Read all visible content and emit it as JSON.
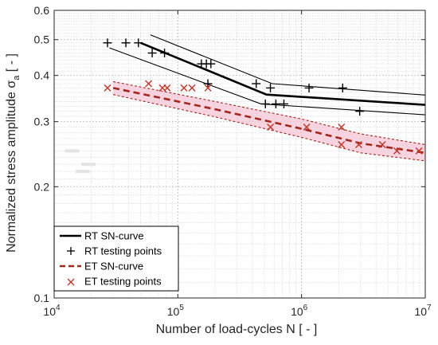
{
  "chart_data": {
    "type": "line",
    "xscale": "log",
    "yscale": "log",
    "xlim": [
      10000,
      10000000
    ],
    "ylim": [
      0.1,
      0.6
    ],
    "xlabel": "Number of load-cycles N [ - ]",
    "ylabel_main": "Normalized stress amplitude σ",
    "ylabel_sub": "a",
    "ylabel_tail": " [ - ]",
    "grid": true,
    "legend_position": "bottom-left",
    "x_ticks": [
      {
        "value": 10000,
        "base": "10",
        "exp": "4"
      },
      {
        "value": 100000,
        "base": "10",
        "exp": "5"
      },
      {
        "value": 1000000,
        "base": "10",
        "exp": "6"
      },
      {
        "value": 10000000,
        "base": "10",
        "exp": "7"
      }
    ],
    "y_ticks": [
      {
        "value": 0.1,
        "label": "0.1"
      },
      {
        "value": 0.2,
        "label": "0.2"
      },
      {
        "value": 0.3,
        "label": "0.3"
      },
      {
        "value": 0.4,
        "label": "0.4"
      },
      {
        "value": 0.5,
        "label": "0.5"
      },
      {
        "value": 0.6,
        "label": "0.6"
      }
    ],
    "series": [
      {
        "name": "RT SN-curve",
        "style": "solid-thick",
        "color": "#000000",
        "points": [
          [
            50000,
            0.49
          ],
          [
            520000,
            0.355
          ],
          [
            10000000,
            0.333
          ]
        ]
      },
      {
        "style": "solid-thin-band",
        "color": "#000000",
        "points": [
          [
            60000,
            0.515
          ],
          [
            580000,
            0.38
          ],
          [
            10000000,
            0.354
          ]
        ]
      },
      {
        "style": "solid-thin-band",
        "color": "#000000",
        "points": [
          [
            28000,
            0.475
          ],
          [
            470000,
            0.335
          ],
          [
            10000000,
            0.313
          ]
        ]
      },
      {
        "name": "RT testing points",
        "style": "plus",
        "color": "#000000",
        "points": [
          [
            27000,
            0.49
          ],
          [
            38000,
            0.49
          ],
          [
            48000,
            0.49
          ],
          [
            62000,
            0.46
          ],
          [
            78000,
            0.46
          ],
          [
            155000,
            0.43
          ],
          [
            170000,
            0.43
          ],
          [
            185000,
            0.43
          ],
          [
            175000,
            0.38
          ],
          [
            430000,
            0.38
          ],
          [
            560000,
            0.37
          ],
          [
            1150000,
            0.37
          ],
          [
            2150000,
            0.37
          ],
          [
            510000,
            0.335
          ],
          [
            620000,
            0.335
          ],
          [
            720000,
            0.335
          ],
          [
            2950000,
            0.32
          ]
        ]
      },
      {
        "name": "ET SN-curve",
        "style": "dashed-thick",
        "color": "#a0281e",
        "points": [
          [
            30000,
            0.37
          ],
          [
            200000,
            0.324
          ],
          [
            1000000,
            0.287
          ],
          [
            3000000,
            0.262
          ],
          [
            10000000,
            0.247
          ]
        ]
      },
      {
        "style": "dashed-thin-band",
        "color": "#a0281e",
        "points": [
          [
            30000,
            0.385
          ],
          [
            200000,
            0.34
          ],
          [
            1000000,
            0.305
          ],
          [
            3000000,
            0.278
          ],
          [
            10000000,
            0.26
          ]
        ]
      },
      {
        "style": "dashed-thin-band",
        "color": "#a0281e",
        "points": [
          [
            30000,
            0.355
          ],
          [
            200000,
            0.309
          ],
          [
            1000000,
            0.272
          ],
          [
            3000000,
            0.247
          ],
          [
            10000000,
            0.235
          ]
        ]
      },
      {
        "name": "ET testing points",
        "style": "cross",
        "color": "#c0392b",
        "points": [
          [
            27000,
            0.37
          ],
          [
            58000,
            0.38
          ],
          [
            75000,
            0.37
          ],
          [
            82000,
            0.37
          ],
          [
            112000,
            0.37
          ],
          [
            130000,
            0.37
          ],
          [
            175000,
            0.37
          ],
          [
            560000,
            0.29
          ],
          [
            1100000,
            0.29
          ],
          [
            2100000,
            0.29
          ],
          [
            2100000,
            0.26
          ],
          [
            2900000,
            0.26
          ],
          [
            4500000,
            0.26
          ],
          [
            5900000,
            0.25
          ],
          [
            8900000,
            0.25
          ]
        ]
      }
    ],
    "band_fill": {
      "color": "#f5c6d6",
      "upper": [
        [
          30000,
          0.385
        ],
        [
          200000,
          0.34
        ],
        [
          1000000,
          0.305
        ],
        [
          3000000,
          0.278
        ],
        [
          10000000,
          0.26
        ]
      ],
      "lower": [
        [
          30000,
          0.355
        ],
        [
          200000,
          0.309
        ],
        [
          1000000,
          0.272
        ],
        [
          3000000,
          0.247
        ],
        [
          10000000,
          0.235
        ]
      ]
    },
    "background_artifacts": [
      {
        "x": 14000,
        "y": 0.25
      },
      {
        "x": 17000,
        "y": 0.22
      },
      {
        "x": 19000,
        "y": 0.23
      }
    ],
    "legend": [
      {
        "label": "RT SN-curve",
        "marker": "line-solid"
      },
      {
        "label": "RT testing points",
        "marker": "plus"
      },
      {
        "label": "ET SN-curve",
        "marker": "line-dashed"
      },
      {
        "label": "ET testing points",
        "marker": "cross"
      }
    ]
  }
}
